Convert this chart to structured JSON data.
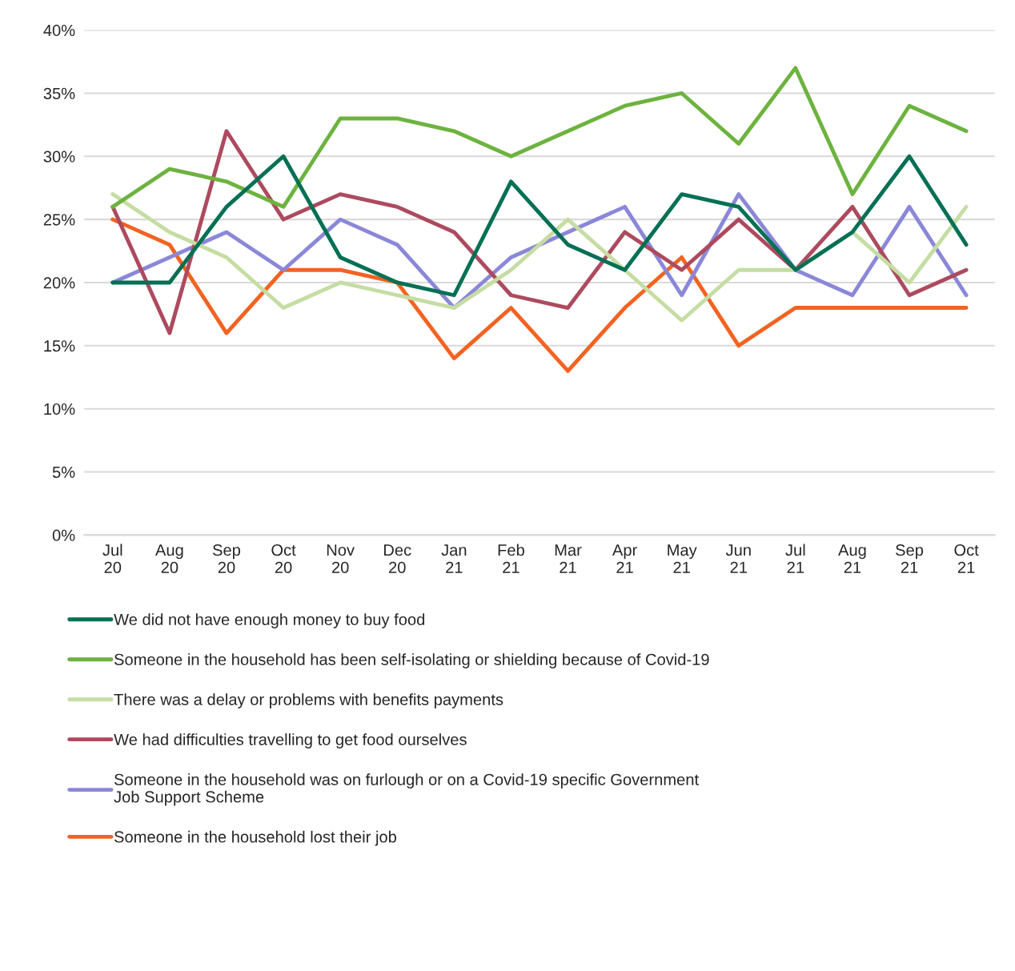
{
  "chart_data": {
    "type": "line",
    "categories": [
      "Jul\n20",
      "Aug\n20",
      "Sep\n20",
      "Oct\n20",
      "Nov\n20",
      "Dec\n20",
      "Jan\n21",
      "Feb\n21",
      "Mar\n21",
      "Apr\n21",
      "May\n21",
      "Jun\n21",
      "Jul\n21",
      "Aug\n21",
      "Sep\n21",
      "Oct\n21"
    ],
    "series": [
      {
        "name": "We did not have enough money to buy food",
        "color": "#007054",
        "values": [
          20,
          20,
          26,
          30,
          22,
          20,
          19,
          28,
          23,
          21,
          27,
          26,
          21,
          24,
          30,
          23
        ]
      },
      {
        "name": "Someone in the household has been self-isolating or shielding because of Covid-19",
        "color": "#6db33f",
        "values": [
          26,
          29,
          28,
          26,
          33,
          33,
          32,
          30,
          32,
          34,
          35,
          31,
          37,
          27,
          34,
          32
        ]
      },
      {
        "name": "There was a delay or problems with benefits payments",
        "color": "#c5dda3",
        "values": [
          27,
          24,
          22,
          18,
          20,
          19,
          18,
          21,
          25,
          21,
          17,
          21,
          21,
          24,
          20,
          26
        ]
      },
      {
        "name": "We had difficulties travelling to get food ourselves",
        "color": "#ad4a5e",
        "values": [
          26,
          16,
          32,
          25,
          27,
          26,
          24,
          19,
          18,
          24,
          21,
          25,
          21,
          26,
          19,
          21
        ]
      },
      {
        "name": "Someone in the household was on furlough or on a Covid-19 specific Government\nJob Support Scheme",
        "color": "#8b87d8",
        "values": [
          20,
          22,
          24,
          21,
          25,
          23,
          18,
          22,
          24,
          26,
          19,
          27,
          21,
          19,
          26,
          19
        ]
      },
      {
        "name": "Someone in the household lost their job",
        "color": "#f26322",
        "values": [
          25,
          23,
          16,
          21,
          21,
          20,
          14,
          18,
          13,
          18,
          22,
          15,
          18,
          18,
          18,
          18
        ]
      }
    ],
    "ylim": [
      0,
      40
    ],
    "yticks": [
      {
        "value": 0,
        "label": "0%"
      },
      {
        "value": 5,
        "label": "5%"
      },
      {
        "value": 10,
        "label": "10%"
      },
      {
        "value": 15,
        "label": "15%"
      },
      {
        "value": 20,
        "label": "20%"
      },
      {
        "value": 25,
        "label": "25%"
      },
      {
        "value": 30,
        "label": "30%"
      },
      {
        "value": 35,
        "label": "35%"
      },
      {
        "value": 40,
        "label": "40%"
      }
    ],
    "grid": "y",
    "legend": "bottom",
    "marker": "none",
    "line_style": "solid"
  }
}
